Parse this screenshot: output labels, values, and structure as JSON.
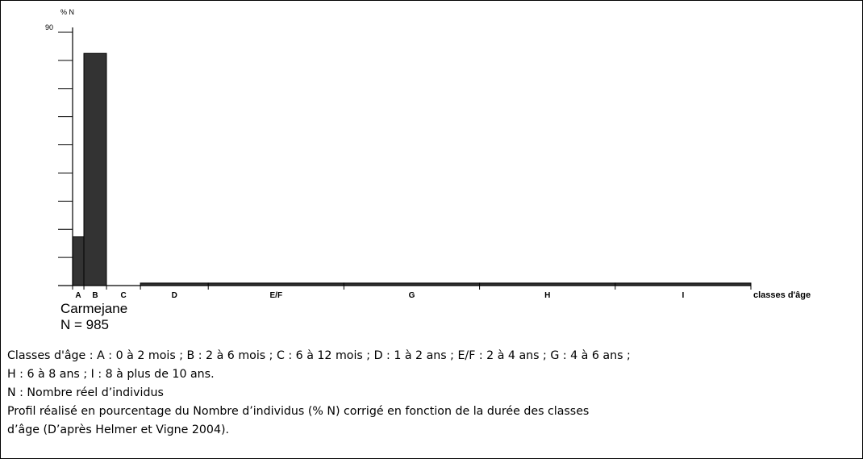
{
  "chart_data": {
    "type": "bar",
    "ylabel": "% N",
    "xlabel": "classes d'âge",
    "ylim": [
      0,
      90
    ],
    "yticks": [
      0,
      10,
      20,
      30,
      40,
      50,
      60,
      70,
      80,
      90
    ],
    "ytick_labels": [
      "90"
    ],
    "categories": [
      "A",
      "B",
      "C",
      "D",
      "E/F",
      "G",
      "H",
      "I"
    ],
    "class_widths": [
      0.167,
      0.333,
      0.5,
      1,
      2,
      2,
      2,
      2
    ],
    "values": [
      17.3,
      82.5,
      0,
      0.9,
      0.9,
      0.9,
      0.9,
      0.9
    ],
    "colors": {
      "bar_fill": "#333333",
      "axis": "#000000"
    }
  },
  "site": {
    "name": "Carmejane",
    "count": "N = 985"
  },
  "notes": {
    "classes": "Classes d'âge : A : 0 à 2 mois ; B : 2 à 6 mois ; C : 6 à 12 mois ; D : 1 à 2 ans ; E/F : 2 à 4 ans ; G : 4 à 6 ans ;",
    "classes_cont": "H : 6 à 8 ans ; I : 8 à plus de 10 ans.",
    "n_def": "N : Nombre réel d’individus",
    "profile": "Profil réalisé en pourcentage du Nombre d’individus (% N) corrigé en fonction de la durée des classes",
    "profile_cont": "d’âge (D’après Helmer et Vigne 2004)."
  }
}
